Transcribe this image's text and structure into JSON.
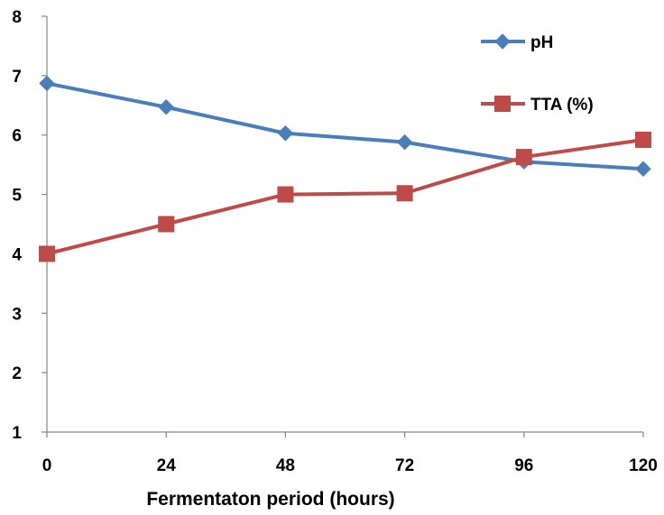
{
  "chart_data": {
    "type": "line",
    "title": "",
    "xlabel": "Fermentaton period (hours)",
    "ylabel": "",
    "x": [
      0,
      24,
      48,
      72,
      96,
      120
    ],
    "x_tick_labels": [
      "0",
      "24",
      "48",
      "72",
      "96",
      "120"
    ],
    "xlim": [
      0,
      120
    ],
    "ylim": [
      1,
      8
    ],
    "y_ticks": [
      1,
      2,
      3,
      4,
      5,
      6,
      7,
      8
    ],
    "y_tick_labels": [
      "1",
      "2",
      "3",
      "4",
      "5",
      "6",
      "7",
      "8"
    ],
    "grid": false,
    "legend_position": "top-right",
    "series": [
      {
        "name": "pH",
        "color": "#4a7ebb",
        "marker": "diamond",
        "values": [
          6.87,
          6.47,
          6.03,
          5.88,
          5.55,
          5.43
        ]
      },
      {
        "name": "TTA (%)",
        "color": "#be4b48",
        "marker": "square",
        "values": [
          4.0,
          4.5,
          5.0,
          5.02,
          5.63,
          5.92
        ]
      }
    ]
  }
}
